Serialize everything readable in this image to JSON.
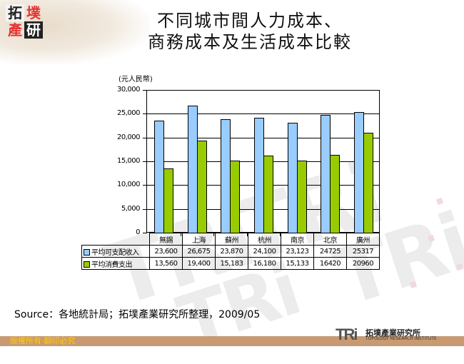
{
  "logo": {
    "chars": [
      "拓",
      "墣",
      "產",
      "研"
    ],
    "colors": [
      "#222222",
      "#e53333",
      "#e53333",
      "#222222"
    ]
  },
  "title": {
    "line1": "不同城市間人力成本、",
    "line2": "商務成本及生活成本比較"
  },
  "chart_data": {
    "type": "bar",
    "title": "不同城市間人力成本、商務成本及生活成本比較",
    "xlabel": "",
    "ylabel": "(元人民幣)",
    "ylim": [
      0,
      30000
    ],
    "yticks": [
      0,
      5000,
      10000,
      15000,
      20000,
      25000,
      30000
    ],
    "ytick_labels": [
      "0",
      "5,000",
      "10,000",
      "15,000",
      "20,000",
      "25,000",
      "30,000"
    ],
    "grid": true,
    "legend_position": "data-table",
    "categories": [
      "無錫",
      "上海",
      "蘇州",
      "杭州",
      "南京",
      "北京",
      "廣州"
    ],
    "series": [
      {
        "name": "平均可支配收入",
        "color": "#99ccff",
        "values": [
          23600,
          26675,
          23870,
          24100,
          23123,
          24725,
          25317
        ],
        "labels": [
          "23,600",
          "26,675",
          "23,870",
          "24,100",
          "23,123",
          "24725",
          "25317"
        ]
      },
      {
        "name": "平均消費支出",
        "color": "#99cc00",
        "values": [
          13560,
          19400,
          15183,
          16180,
          15133,
          16420,
          20960
        ],
        "labels": [
          "13,560",
          "19,400",
          "15,183",
          "16,180",
          "15,133",
          "16420",
          "20960"
        ]
      }
    ]
  },
  "source": "Source：各地統計局；拓墣產業研究所整理，2009/05",
  "footer": {
    "copyright": "版權所有‧翻印必究"
  },
  "brand": {
    "mark": "TRi",
    "name_cn": "拓墣產業研究所",
    "name_en": "TOPOLOGY RESEARCH INSTITUTE"
  }
}
